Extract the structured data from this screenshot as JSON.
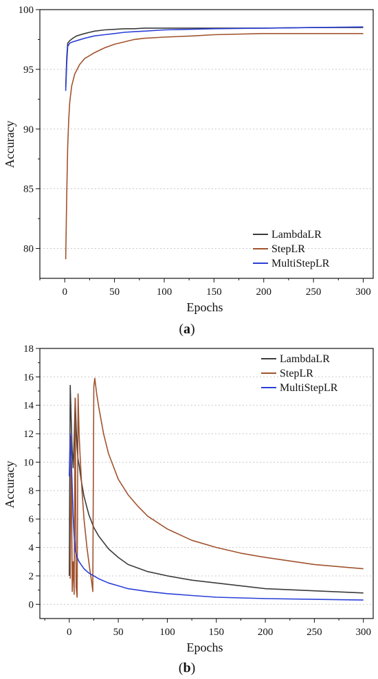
{
  "chart_data": [
    {
      "type": "line",
      "panel_label": "a",
      "xlabel": "Epochs",
      "ylabel": "Accuracy",
      "xlim": [
        -25,
        310
      ],
      "ylim": [
        77.5,
        100
      ],
      "xticks": [
        0,
        50,
        100,
        150,
        200,
        250,
        300
      ],
      "yticks": [
        80,
        85,
        90,
        95,
        100
      ],
      "grid": "horizontal dotted",
      "legend": "bottom-right",
      "series": [
        {
          "name": "LambdaLR",
          "color": "#3a3a3a",
          "x": [
            1,
            2,
            3,
            5,
            8,
            12,
            20,
            30,
            40,
            50,
            60,
            70,
            80,
            100,
            150,
            200,
            250,
            300
          ],
          "y": [
            93.5,
            96.0,
            97.2,
            97.4,
            97.6,
            97.8,
            98.0,
            98.2,
            98.3,
            98.35,
            98.4,
            98.4,
            98.45,
            98.45,
            98.45,
            98.45,
            98.5,
            98.5
          ]
        },
        {
          "name": "StepLR",
          "color": "#a0522d",
          "x": [
            1,
            2,
            3,
            4,
            5,
            7,
            10,
            15,
            20,
            30,
            40,
            50,
            60,
            70,
            80,
            100,
            130,
            150,
            200,
            250,
            300
          ],
          "y": [
            79.1,
            84.5,
            88.5,
            90.8,
            92.2,
            93.6,
            94.6,
            95.4,
            95.9,
            96.4,
            96.8,
            97.1,
            97.3,
            97.5,
            97.6,
            97.7,
            97.8,
            97.9,
            98.0,
            98.0,
            98.0
          ]
        },
        {
          "name": "MultiStepLR",
          "color": "#2a3fd6",
          "x": [
            1,
            2,
            3,
            5,
            8,
            12,
            20,
            30,
            40,
            50,
            60,
            70,
            80,
            100,
            150,
            200,
            250,
            300
          ],
          "y": [
            93.2,
            95.5,
            96.9,
            97.2,
            97.3,
            97.4,
            97.6,
            97.8,
            97.9,
            98.0,
            98.1,
            98.15,
            98.2,
            98.3,
            98.4,
            98.45,
            98.5,
            98.55
          ]
        }
      ]
    },
    {
      "type": "line",
      "panel_label": "b",
      "xlabel": "Epochs",
      "ylabel": "Accuracy",
      "xlim": [
        -30,
        310
      ],
      "ylim": [
        -1,
        18
      ],
      "xticks": [
        0,
        50,
        100,
        150,
        200,
        250,
        300
      ],
      "yticks": [
        0,
        2,
        4,
        6,
        8,
        10,
        12,
        14,
        16,
        18
      ],
      "grid": "horizontal dotted",
      "legend": "top-right",
      "series": [
        {
          "name": "LambdaLR",
          "color": "#3a3a3a",
          "x": [
            0,
            1,
            2,
            3,
            4,
            5,
            6,
            7,
            8,
            9,
            10,
            12,
            15,
            20,
            25,
            30,
            40,
            50,
            60,
            80,
            100,
            125,
            150,
            175,
            200,
            250,
            300
          ],
          "y": [
            2.0,
            15.4,
            13.0,
            10.8,
            9.6,
            11.5,
            14.5,
            12.4,
            11.0,
            10.2,
            9.8,
            8.8,
            7.6,
            6.3,
            5.4,
            4.8,
            3.9,
            3.3,
            2.8,
            2.3,
            2.0,
            1.7,
            1.5,
            1.3,
            1.1,
            0.95,
            0.8
          ]
        },
        {
          "name": "StepLR",
          "color": "#a0522d",
          "x": [
            1,
            2,
            3,
            4,
            5,
            6,
            7,
            8,
            9,
            10,
            11,
            12,
            13,
            15,
            18,
            21,
            23,
            24,
            25,
            26,
            28,
            30,
            35,
            40,
            50,
            60,
            70,
            80,
            100,
            125,
            150,
            175,
            200,
            250,
            300
          ],
          "y": [
            1.8,
            11.8,
            0.9,
            3.0,
            0.7,
            14.5,
            1.2,
            0.5,
            14.8,
            12.0,
            10.5,
            9.2,
            8.0,
            6.0,
            4.0,
            2.4,
            1.5,
            0.9,
            15.3,
            15.9,
            14.8,
            13.9,
            12.0,
            10.6,
            8.8,
            7.7,
            6.9,
            6.2,
            5.3,
            4.5,
            4.0,
            3.6,
            3.3,
            2.8,
            2.5
          ]
        },
        {
          "name": "MultiStepLR",
          "color": "#2a3fd6",
          "x": [
            0,
            1,
            2,
            3,
            4,
            5,
            6,
            8,
            10,
            12,
            15,
            20,
            25,
            30,
            40,
            50,
            60,
            80,
            100,
            125,
            150,
            175,
            200,
            250,
            300
          ],
          "y": [
            9.0,
            12.0,
            10.4,
            8.2,
            6.1,
            4.8,
            3.8,
            3.3,
            3.0,
            2.8,
            2.5,
            2.2,
            2.0,
            1.8,
            1.5,
            1.3,
            1.1,
            0.9,
            0.75,
            0.62,
            0.5,
            0.45,
            0.4,
            0.35,
            0.3
          ]
        }
      ]
    }
  ]
}
